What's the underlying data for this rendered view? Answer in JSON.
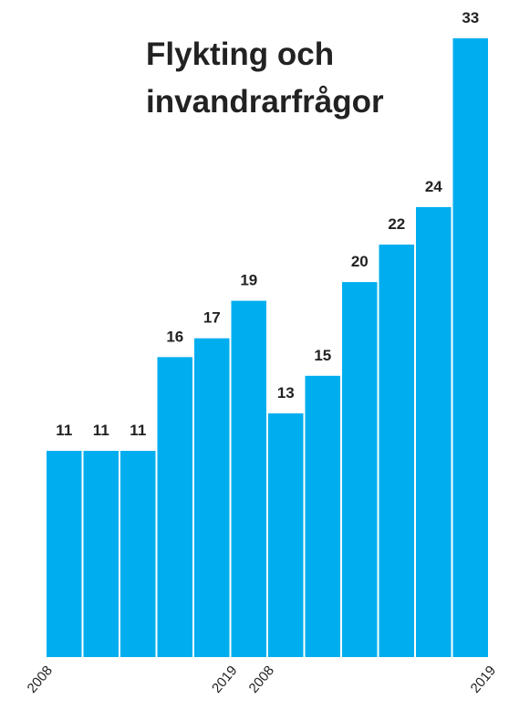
{
  "chart_data": {
    "type": "bar",
    "title_lines": [
      "Flykting och",
      "invandrarfrågor"
    ],
    "values": [
      11,
      11,
      11,
      16,
      17,
      19,
      13,
      15,
      20,
      22,
      24,
      33
    ],
    "data_labels": [
      "11",
      "11",
      "11",
      "16",
      "17",
      "19",
      "13",
      "15",
      "20",
      "22",
      "24",
      "33"
    ],
    "x_tick_labels": [
      "2008",
      "2019",
      "2008",
      "2019"
    ],
    "ylim": [
      0,
      33
    ],
    "bar_color": "#00aeef",
    "grid": false,
    "legend": "none"
  }
}
